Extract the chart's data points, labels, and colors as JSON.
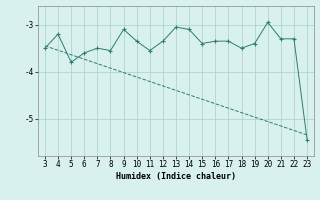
{
  "x": [
    3,
    4,
    5,
    6,
    7,
    8,
    9,
    10,
    11,
    12,
    13,
    14,
    15,
    16,
    17,
    18,
    19,
    20,
    21,
    22,
    23
  ],
  "y": [
    -3.5,
    -3.2,
    -3.8,
    -3.6,
    -3.5,
    -3.55,
    -3.1,
    -3.35,
    -3.55,
    -3.35,
    -3.05,
    -3.1,
    -3.4,
    -3.35,
    -3.35,
    -3.5,
    -3.4,
    -2.95,
    -3.3,
    -3.3,
    -5.45
  ],
  "trend_x": [
    3,
    23
  ],
  "trend_y": [
    -3.45,
    -5.35
  ],
  "xlabel": "Humidex (Indice chaleur)",
  "ylim": [
    -5.8,
    -2.6
  ],
  "xlim": [
    2.5,
    23.5
  ],
  "yticks": [
    -5,
    -4,
    -3
  ],
  "xticks": [
    3,
    4,
    5,
    6,
    7,
    8,
    9,
    10,
    11,
    12,
    13,
    14,
    15,
    16,
    17,
    18,
    19,
    20,
    21,
    22,
    23
  ],
  "line_color": "#2e7d6e",
  "bg_color": "#d8f0ee",
  "grid_color": "#aacfcc",
  "font_size_label": 6.0,
  "font_size_tick": 5.5
}
